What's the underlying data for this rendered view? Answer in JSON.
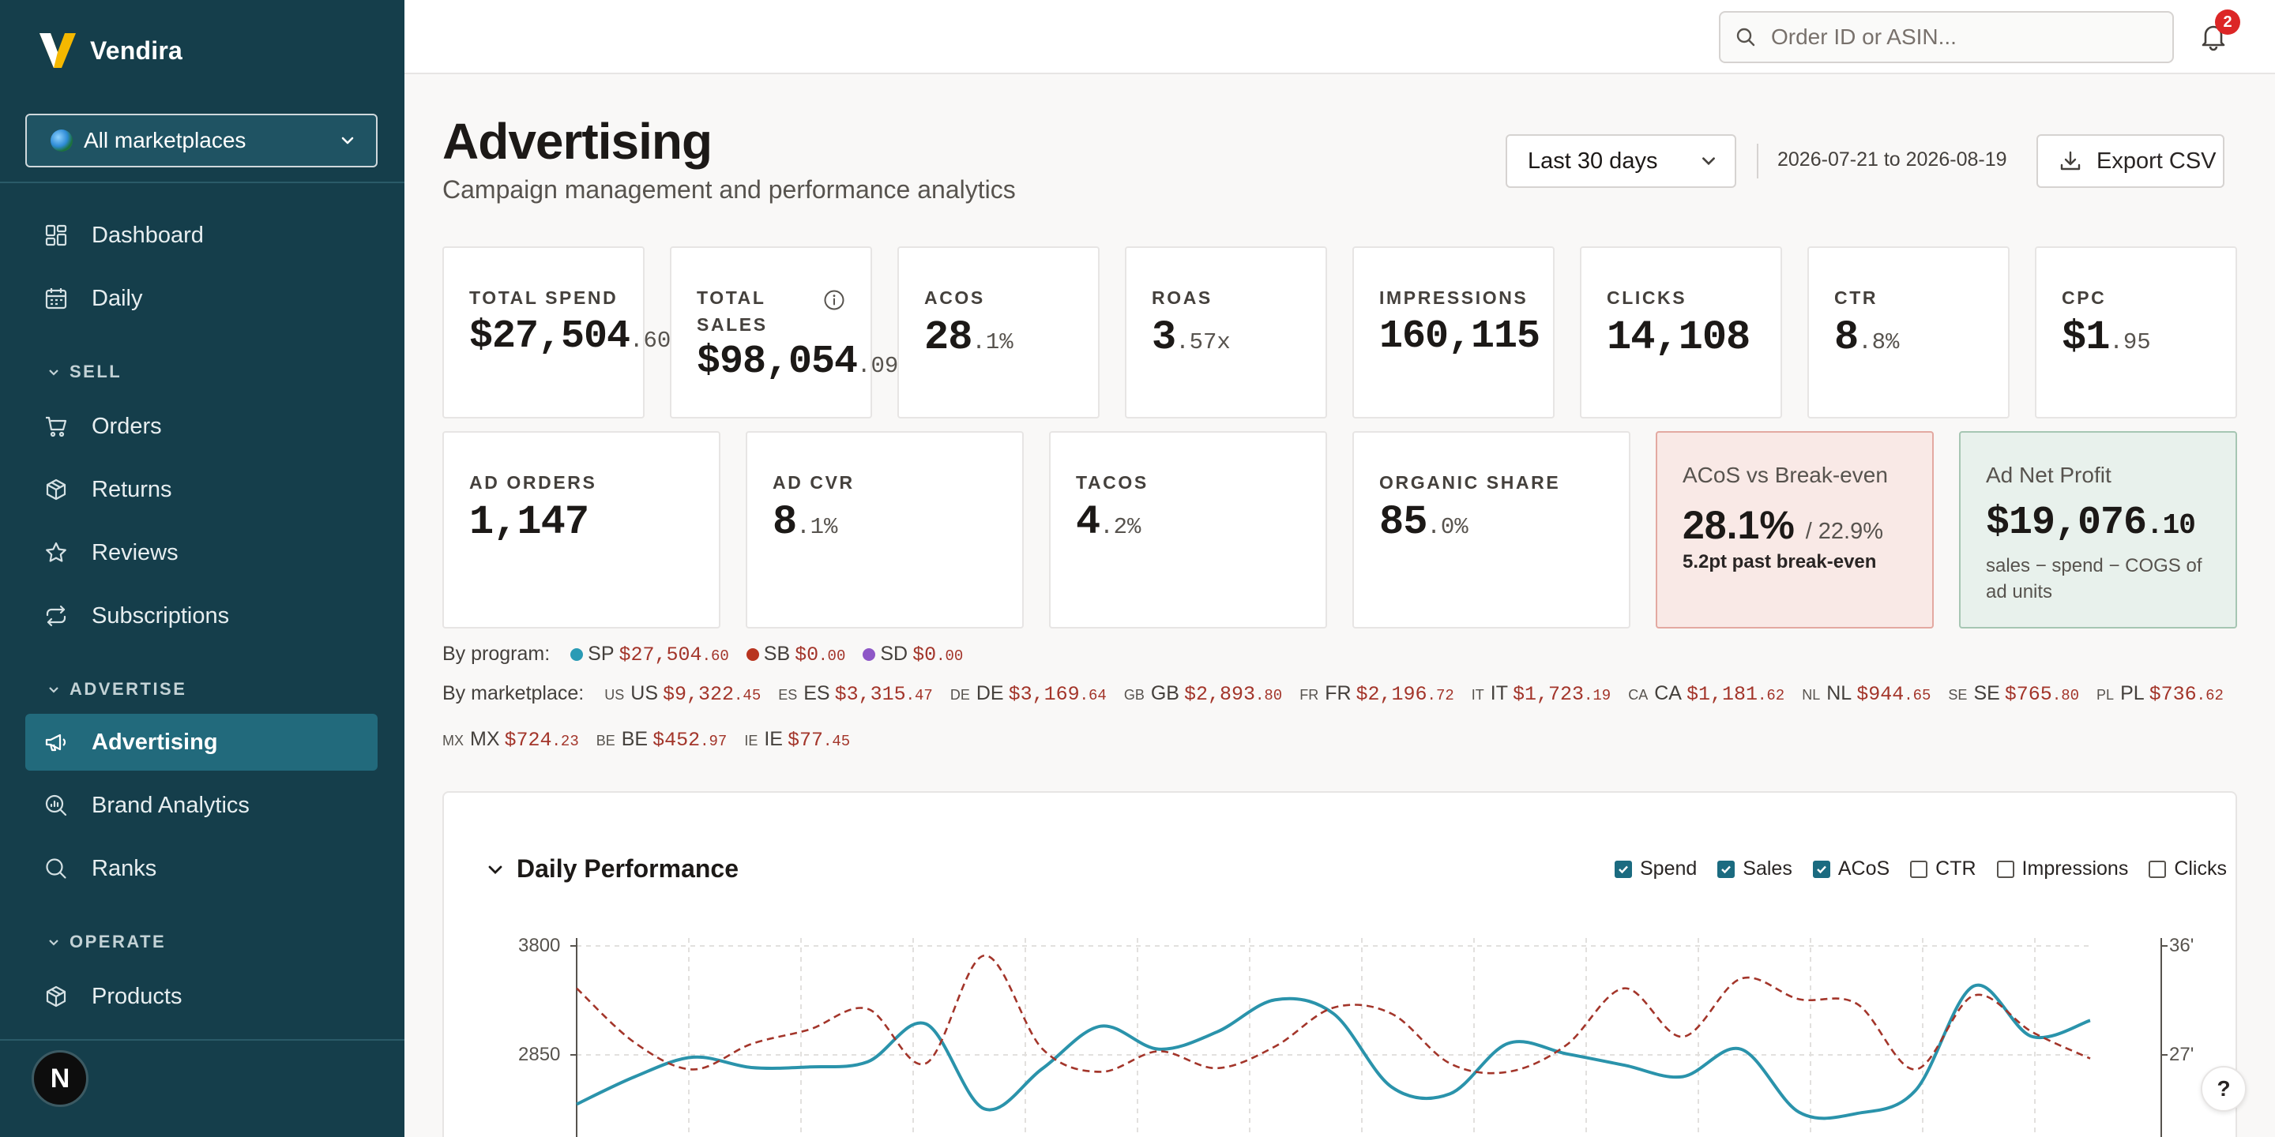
{
  "app": {
    "name": "Vendira",
    "avatar_initial": "N"
  },
  "sidebar": {
    "marketplace": "All marketplaces",
    "items": [
      {
        "label": "Dashboard"
      },
      {
        "label": "Daily"
      },
      {
        "label": "Orders"
      },
      {
        "label": "Returns"
      },
      {
        "label": "Reviews"
      },
      {
        "label": "Subscriptions"
      },
      {
        "label": "Advertising"
      },
      {
        "label": "Brand Analytics"
      },
      {
        "label": "Ranks"
      },
      {
        "label": "Products"
      }
    ],
    "sections": {
      "sell": "SELL",
      "advertise": "ADVERTISE",
      "operate": "OPERATE"
    }
  },
  "topbar": {
    "search_placeholder": "Order ID or ASIN...",
    "notifications": "2"
  },
  "header": {
    "title": "Advertising",
    "subtitle": "Campaign management and performance analytics",
    "range": "Last 30 days",
    "date_range": "2026-07-21 to 2026-08-19",
    "export": "Export CSV"
  },
  "kpis": {
    "spend": {
      "label": "TOTAL SPEND",
      "main": "$27,504",
      "dec": ".60"
    },
    "sales": {
      "label1": "TOTAL",
      "label2": "SALES",
      "main": "$98,054",
      "dec": ".09"
    },
    "acos": {
      "label": "ACOS",
      "main": "28",
      "dec": ".1%"
    },
    "roas": {
      "label": "ROAS",
      "main": "3",
      "dec": ".57x"
    },
    "impressions": {
      "label": "IMPRESSIONS",
      "main": "160,115"
    },
    "clicks": {
      "label": "CLICKS",
      "main": "14,108"
    },
    "ctr": {
      "label": "CTR",
      "main": "8",
      "dec": ".8%"
    },
    "cpc": {
      "label": "CPC",
      "main": "$1",
      "dec": ".95"
    },
    "ad_orders": {
      "label": "AD ORDERS",
      "main": "1,147"
    },
    "ad_cvr": {
      "label": "AD CVR",
      "main": "8",
      "dec": ".1%"
    },
    "tacos": {
      "label": "TACOS",
      "main": "4",
      "dec": ".2%"
    },
    "organic": {
      "label": "ORGANIC SHARE",
      "main": "85",
      "dec": ".0%"
    },
    "breakeven": {
      "label": "ACoS vs Break-even",
      "value": "28.1%",
      "target": "/ 22.9%",
      "note": "5.2pt past break-even"
    },
    "net_profit": {
      "label": "Ad Net Profit",
      "main": "$19,076",
      "dec": ".10",
      "note": "sales − spend − COGS of ad units"
    }
  },
  "by_program": {
    "label": "By program:",
    "items": [
      {
        "name": "SP",
        "main": "$27,504",
        "dec": ".60",
        "color": "#2a9bb5"
      },
      {
        "name": "SB",
        "main": "$0",
        "dec": ".00",
        "color": "#b8341f"
      },
      {
        "name": "SD",
        "main": "$0",
        "dec": ".00",
        "color": "#8e57c7"
      }
    ]
  },
  "by_marketplace": {
    "label": "By marketplace:",
    "items": [
      {
        "code": "US",
        "name": "US",
        "main": "$9,322",
        "dec": ".45"
      },
      {
        "code": "ES",
        "name": "ES",
        "main": "$3,315",
        "dec": ".47"
      },
      {
        "code": "DE",
        "name": "DE",
        "main": "$3,169",
        "dec": ".64"
      },
      {
        "code": "GB",
        "name": "GB",
        "main": "$2,893",
        "dec": ".80"
      },
      {
        "code": "FR",
        "name": "FR",
        "main": "$2,196",
        "dec": ".72"
      },
      {
        "code": "IT",
        "name": "IT",
        "main": "$1,723",
        "dec": ".19"
      },
      {
        "code": "CA",
        "name": "CA",
        "main": "$1,181",
        "dec": ".62"
      },
      {
        "code": "NL",
        "name": "NL",
        "main": "$944",
        "dec": ".65"
      },
      {
        "code": "SE",
        "name": "SE",
        "main": "$765",
        "dec": ".80"
      },
      {
        "code": "PL",
        "name": "PL",
        "main": "$736",
        "dec": ".62"
      },
      {
        "code": "MX",
        "name": "MX",
        "main": "$724",
        "dec": ".23"
      },
      {
        "code": "BE",
        "name": "BE",
        "main": "$452",
        "dec": ".97"
      },
      {
        "code": "IE",
        "name": "IE",
        "main": "$77",
        "dec": ".45"
      }
    ]
  },
  "chart": {
    "title": "Daily Performance",
    "toggles": [
      {
        "label": "Spend",
        "on": true
      },
      {
        "label": "Sales",
        "on": true
      },
      {
        "label": "ACoS",
        "on": true
      },
      {
        "label": "CTR",
        "on": false
      },
      {
        "label": "Impressions",
        "on": false
      },
      {
        "label": "Clicks",
        "on": false
      }
    ],
    "y_left_ticks": [
      "3800",
      "2850"
    ],
    "y_right_ticks": [
      "36'",
      "27'"
    ]
  },
  "chart_data": {
    "type": "line",
    "title": "Daily Performance",
    "xlabel": "",
    "ylabel": "",
    "ylim": [
      1900,
      3800
    ],
    "series": [
      {
        "values": [
          2420,
          2660,
          2830,
          2740,
          2745,
          2790,
          3120,
          2380,
          2730,
          3100,
          2900,
          3050,
          3330,
          3210,
          2570,
          2510,
          2950,
          2860,
          2760,
          2660,
          2900,
          2350,
          2340,
          2540,
          3450,
          3010,
          3150
        ],
        "color": "#2a93ab"
      },
      {
        "values": [
          0.325,
          0.28,
          0.258,
          0.279,
          0.291,
          0.308,
          0.263,
          0.352,
          0.275,
          0.256,
          0.273,
          0.259,
          0.277,
          0.309,
          0.304,
          0.263,
          0.256,
          0.278,
          0.325,
          0.285,
          0.333,
          0.316,
          0.312,
          0.258,
          0.319,
          0.289,
          0.267
        ],
        "color": "#a3352a",
        "dashed": true
      }
    ]
  }
}
